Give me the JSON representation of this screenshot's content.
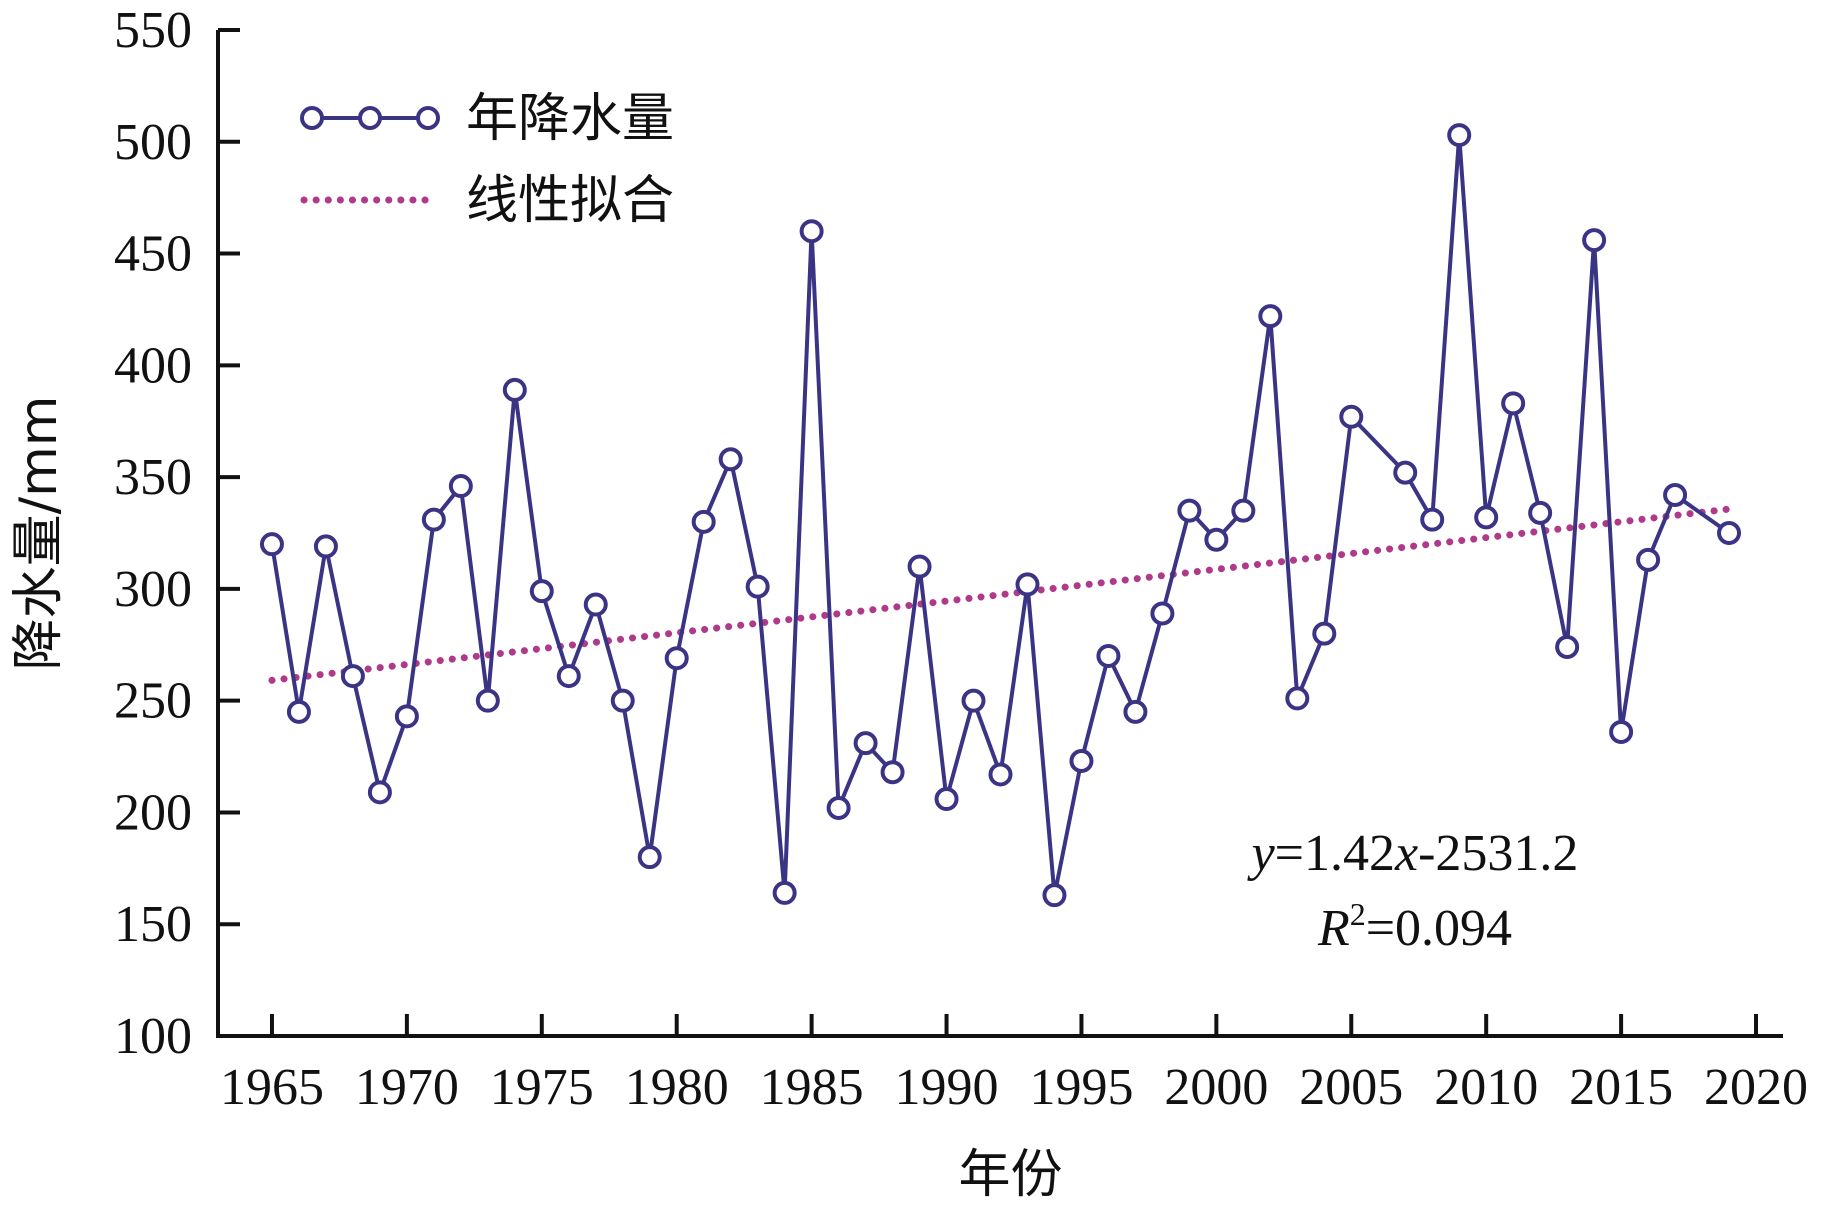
{
  "chart_data": {
    "type": "line",
    "xlabel": "年份",
    "ylabel": "降水量/mm",
    "xlim": [
      1963,
      2021
    ],
    "ylim": [
      100,
      550
    ],
    "xticks": [
      1965,
      1970,
      1975,
      1980,
      1985,
      1990,
      1995,
      2000,
      2005,
      2010,
      2015,
      2020
    ],
    "yticks": [
      100,
      150,
      200,
      250,
      300,
      350,
      400,
      450,
      500,
      550
    ],
    "grid": false,
    "legend_position": "top-left",
    "series": [
      {
        "name": "年降水量",
        "kind": "line-markers",
        "color": "#3b3485",
        "x": [
          1965,
          1966,
          1967,
          1968,
          1969,
          1970,
          1971,
          1972,
          1973,
          1974,
          1975,
          1976,
          1977,
          1978,
          1979,
          1980,
          1981,
          1982,
          1983,
          1984,
          1985,
          1986,
          1987,
          1988,
          1989,
          1990,
          1991,
          1992,
          1993,
          1994,
          1995,
          1996,
          1997,
          1998,
          1999,
          2000,
          2001,
          2002,
          2003,
          2004,
          2005,
          2007,
          2008,
          2009,
          2010,
          2011,
          2012,
          2013,
          2014,
          2015,
          2016,
          2017,
          2019
        ],
        "values": [
          320,
          245,
          319,
          261,
          209,
          243,
          331,
          346,
          250,
          389,
          299,
          261,
          293,
          250,
          180,
          269,
          330,
          358,
          301,
          164,
          460,
          202,
          231,
          218,
          310,
          206,
          250,
          217,
          302,
          163,
          223,
          270,
          245,
          289,
          335,
          322,
          335,
          422,
          251,
          280,
          377,
          352,
          331,
          503,
          332,
          383,
          334,
          274,
          456,
          236,
          313,
          342,
          325
        ]
      },
      {
        "name": "线性拟合",
        "kind": "dotted-trend",
        "color": "#b03a8a",
        "x": [
          1965,
          2019
        ],
        "values": [
          259.1,
          335.7
        ]
      }
    ],
    "annotations": {
      "equation": {
        "y_var": "y",
        "eq1": "=1.42",
        "x_var": "x",
        "eq2": "-2531.2"
      },
      "r_squared": {
        "r_var": "R",
        "sup": "2",
        "value": "=0.094"
      }
    }
  }
}
